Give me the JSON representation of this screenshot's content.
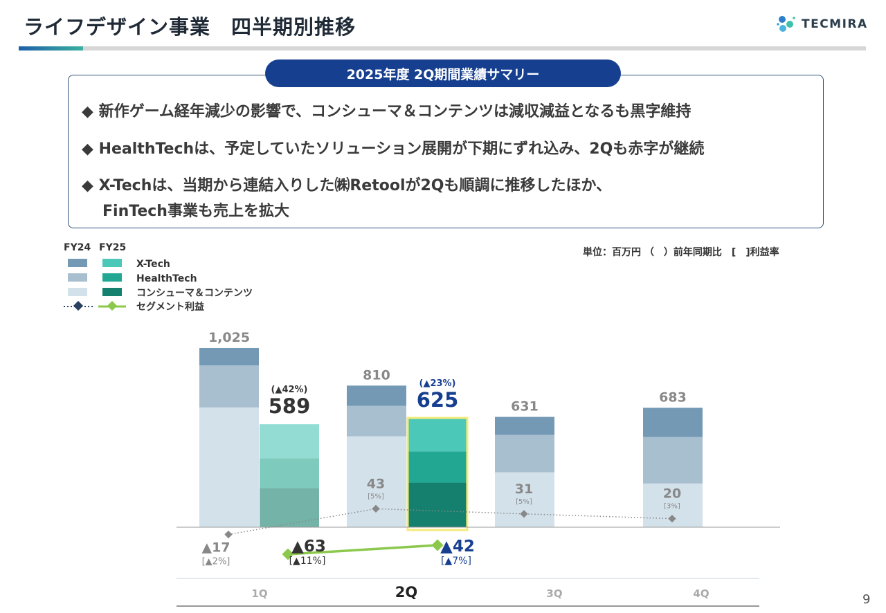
{
  "header": {
    "title": "ライフデザイン事業　四半期別推移",
    "logo_text": "TECMIRA"
  },
  "summary": {
    "title": "2025年度 2Q期間業績サマリー",
    "bullets": [
      "◆ 新作ゲーム経年減少の影響で、コンシューマ＆コンテンツは減収減益となるも黒字維持",
      "◆ HealthTechは、予定していたソリューション展開が下期にずれ込み、2Qも赤字が継続",
      "◆ X-Techは、当期から連結入りした㈱Retoolが2Qも順調に推移したほか、"
    ],
    "bullet3_cont": "FinTech事業も売上を拡大"
  },
  "unit_note": "単位：百万円 （　）前年同期比　[　]利益率",
  "page_number": "9",
  "chart_data": {
    "type": "bar",
    "stacked": true,
    "categories": [
      "1Q",
      "2Q",
      "3Q",
      "4Q"
    ],
    "highlight_category": "2Q",
    "legend": {
      "periods": [
        "FY24",
        "FY25"
      ],
      "entries": [
        "X-Tech",
        "HealthTech",
        "コンシューマ＆コンテンツ",
        "セグメント利益"
      ],
      "placement": "top-left"
    },
    "colors": {
      "FY24": {
        "X-Tech": "#7399b5",
        "HealthTech": "#a8bfcf",
        "コンシューマ＆コンテンツ": "#d3e1ea"
      },
      "FY25": {
        "X-Tech": "#4cc8b8",
        "HealthTech": "#22a892",
        "コンシューマ＆コンテンツ": "#15806e"
      },
      "FY25_1Q": {
        "X-Tech": "#93dcd3",
        "HealthTech": "#7ecbbd",
        "コンシューマ＆コンテンツ": "#74b3a8"
      },
      "profit_FY24": "#888888",
      "profit_FY25": "#8cc84b",
      "highlight_border": "#f3ea7a",
      "emphasis": "#163f8f"
    },
    "series": [
      {
        "period": "FY24",
        "segment": "X-Tech",
        "values": [
          99,
          116,
          103,
          167
        ]
      },
      {
        "period": "FY24",
        "segment": "HealthTech",
        "values": [
          241,
          174,
          214,
          266
        ]
      },
      {
        "period": "FY24",
        "segment": "コンシューマ＆コンテンツ",
        "values": [
          685,
          520,
          314,
          250
        ]
      },
      {
        "period": "FY25",
        "segment": "X-Tech",
        "values": [
          194,
          191,
          null,
          null
        ]
      },
      {
        "period": "FY25",
        "segment": "HealthTech",
        "values": [
          170,
          179,
          null,
          null
        ]
      },
      {
        "period": "FY25",
        "segment": "コンシューマ＆コンテンツ",
        "values": [
          225,
          255,
          null,
          null
        ]
      }
    ],
    "totals": {
      "FY24": [
        1025,
        810,
        631,
        683
      ],
      "FY25": [
        589,
        625,
        null,
        null
      ]
    },
    "total_labels": {
      "FY24": [
        "1,025",
        "810",
        "631",
        "683"
      ],
      "FY25": [
        "589",
        "625"
      ]
    },
    "yoy_labels": {
      "FY25": [
        "(▲42%)",
        "(▲23%)"
      ]
    },
    "segment_profit": {
      "FY24": {
        "values": [
          -17,
          43,
          31,
          20
        ],
        "labels": [
          "▲17",
          "43",
          "31",
          "20"
        ],
        "margins": [
          "[▲2%]",
          "[5%]",
          "[5%]",
          "[3%]"
        ]
      },
      "FY25": {
        "values": [
          -63,
          -42
        ],
        "labels": [
          "▲63",
          "▲42"
        ],
        "margins": [
          "[▲11%]",
          "[▲7%]"
        ]
      }
    }
  }
}
